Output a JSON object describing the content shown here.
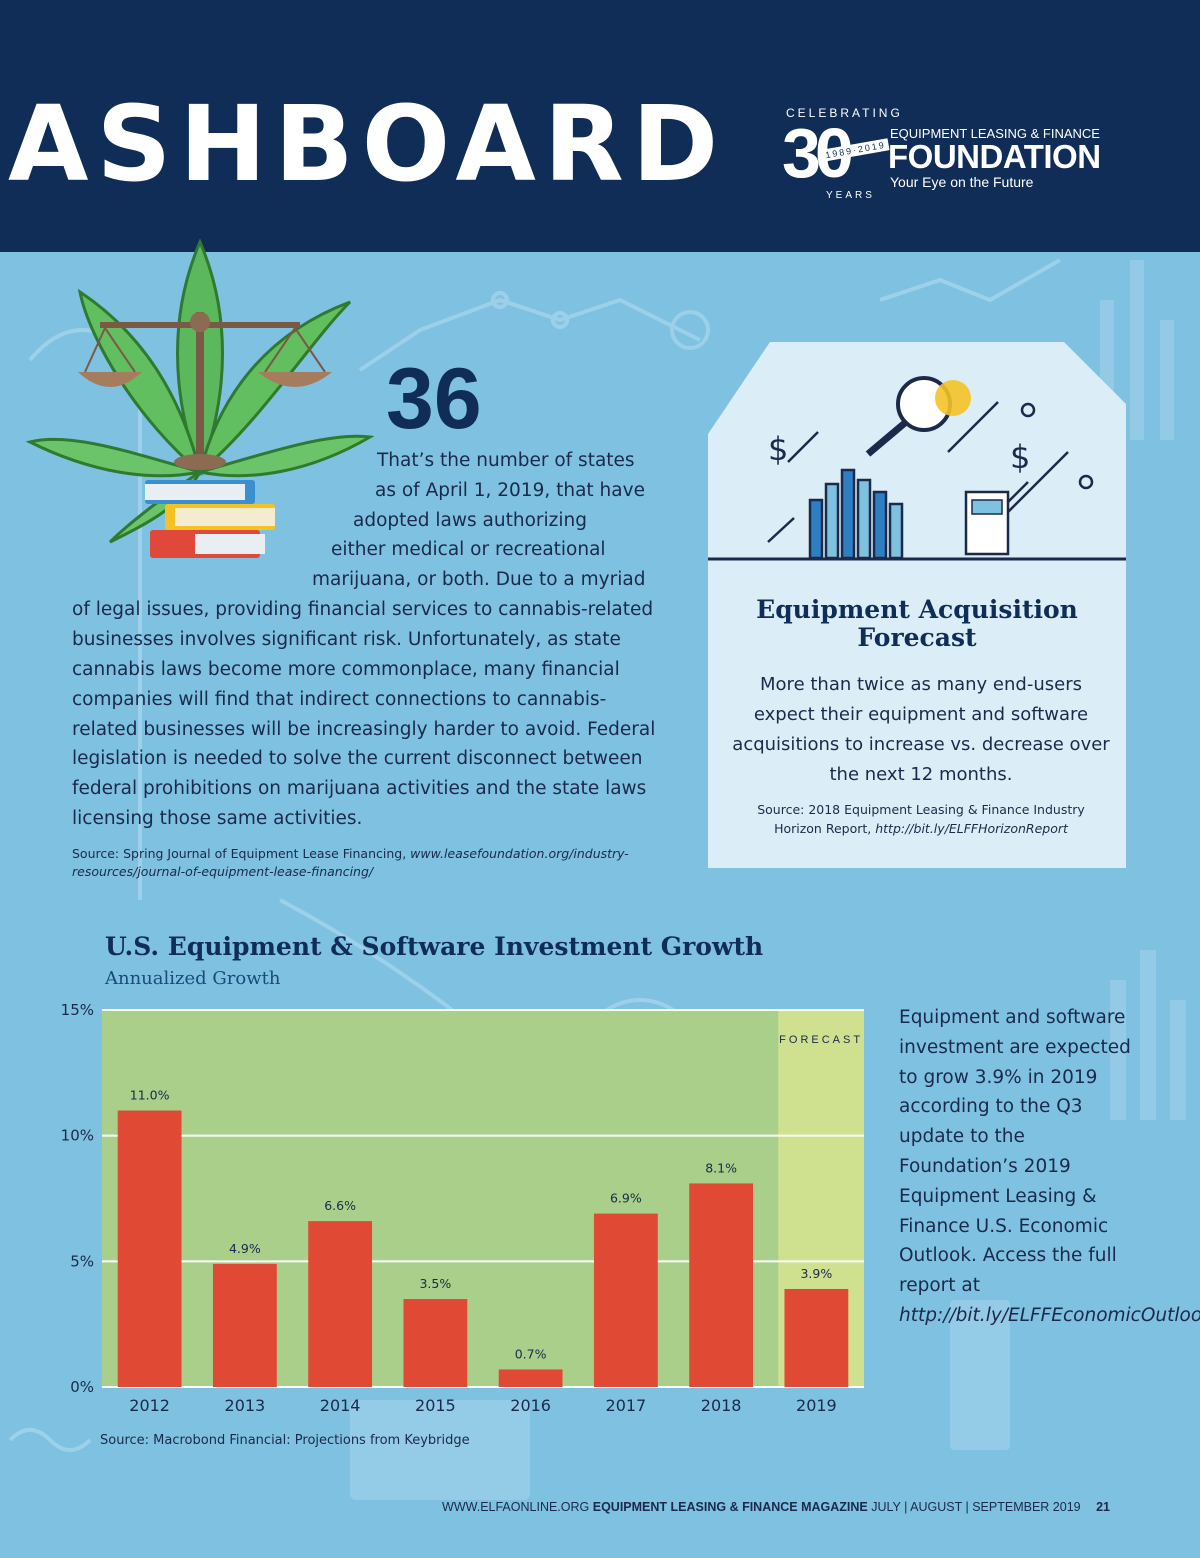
{
  "header": {
    "masthead": "ASHBOARD",
    "logo": {
      "celebrating": "CELEBRATING",
      "number": "30",
      "years_range": "1989·2019",
      "years": "YEARS",
      "org_line": "EQUIPMENT LEASING & FINANCE",
      "name": "FOUNDATION",
      "tagline": "Your Eye on the Future"
    }
  },
  "stat": {
    "number": "36",
    "lines": [
      "That’s the number of states",
      "as of April 1, 2019, that have",
      "adopted laws authorizing",
      "either medical or recreational",
      "marijuana, or both. Due to a myriad",
      "of legal issues, providing financial services to cannabis-related",
      "businesses involves significant risk. Unfortunately, as state",
      "cannabis laws become more commonplace, many financial",
      "companies will find that indirect connections to cannabis-",
      "related businesses will be increasingly harder to avoid. Federal",
      "legislation is needed to solve the current disconnect between",
      "federal prohibitions on marijuana activities and the state laws",
      "licensing those same activities."
    ],
    "source_prefix": "Source: Spring Journal of Equipment Lease Financing, ",
    "source_link": "www.leasefoundation.org/industry-resources/journal-of-equipment-lease-financing/"
  },
  "acquisition": {
    "title": "Equipment Acquisition Forecast",
    "body": "More than twice as many end-users expect their equipment and software acquisitions to increase vs. decrease over the next 12 months.",
    "source_prefix": "Source: 2018 Equipment Leasing & Finance Industry Horizon Report, ",
    "source_link": "http://bit.ly/ELFFHorizonReport"
  },
  "chart_title": "U.S. Equipment & Software Investment Growth",
  "chart_subtitle": "Annualized Growth",
  "chart_data": {
    "type": "bar",
    "title": "U.S. Equipment & Software Investment Growth",
    "subtitle": "Annualized Growth",
    "categories": [
      "2012",
      "2013",
      "2014",
      "2015",
      "2016",
      "2017",
      "2018",
      "2019"
    ],
    "values": [
      11.0,
      4.9,
      6.6,
      3.5,
      0.7,
      6.9,
      8.1,
      3.9
    ],
    "value_labels": [
      "11.0%",
      "4.9%",
      "6.6%",
      "3.5%",
      "0.7%",
      "6.9%",
      "8.1%",
      "3.9%"
    ],
    "ylim": [
      0,
      15
    ],
    "yticks": [
      0,
      5,
      10,
      15
    ],
    "ytick_labels": [
      "0%",
      "5%",
      "10%",
      "15%"
    ],
    "forecast_label": "FORECAST",
    "forecast_categories": [
      "2019"
    ],
    "grid": true,
    "colors": {
      "bar": "#e04a35",
      "plot_bg": "#a9cf8a",
      "forecast_bg": "#cfe08e",
      "grid": "#ffffff"
    }
  },
  "chart_source": "Source: Macrobond Financial: Projections from Keybridge",
  "side_note": {
    "text": "Equipment and software investment are expected to grow 3.9% in 2019 according to the Q3 update to the Foundation’s 2019 Equipment Leasing & Finance U.S. Economic Outlook. Access the full report at ",
    "link": "http://bit.ly/ELFFEconomicOutlook"
  },
  "footer": {
    "site": "WWW.ELFAONLINE.ORG",
    "publication": "EQUIPMENT LEASING & FINANCE MAGAZINE",
    "issue": "JULY | AUGUST | SEPTEMBER 2019",
    "page": "21"
  },
  "colors": {
    "background": "#7fc1e0",
    "banner": "#0f2d57",
    "heading": "#0f2d57",
    "card": "#dbeef8"
  }
}
